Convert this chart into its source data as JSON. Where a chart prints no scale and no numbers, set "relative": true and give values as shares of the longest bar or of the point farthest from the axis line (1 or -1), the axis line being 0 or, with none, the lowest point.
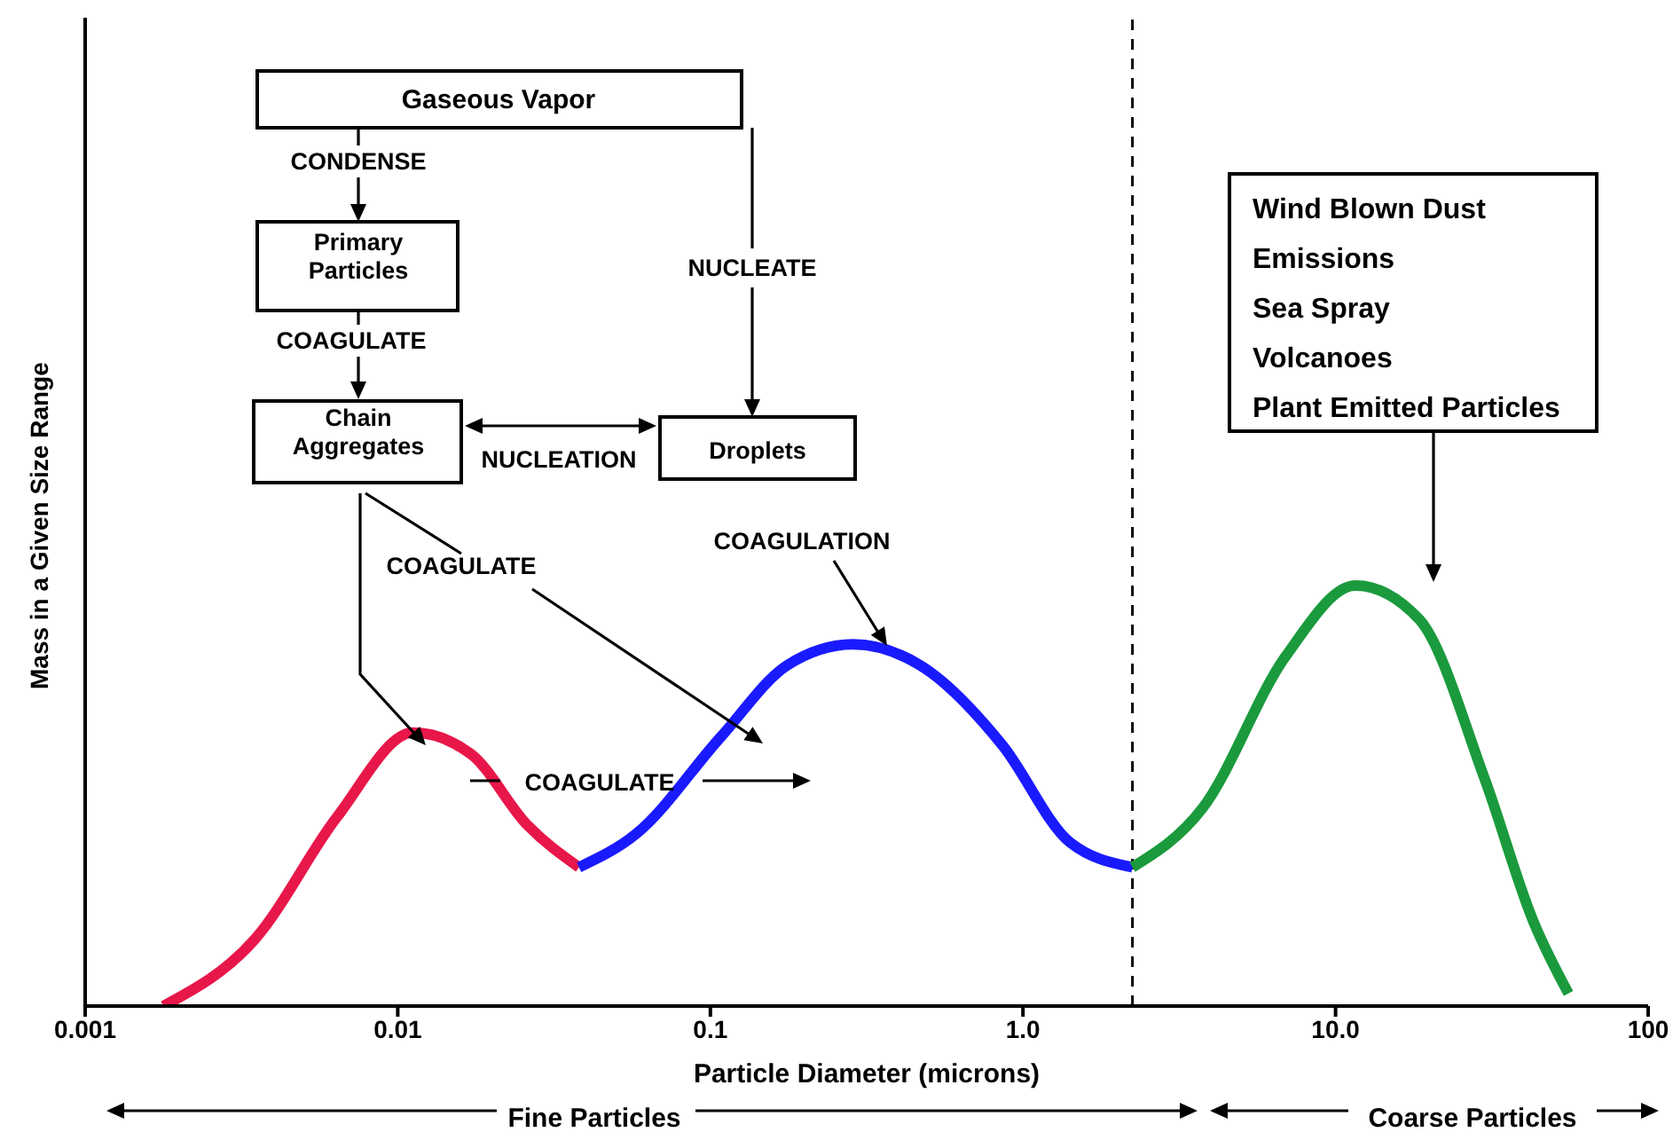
{
  "chart_data": {
    "type": "line",
    "xlabel": "Particle Diameter (microns)",
    "ylabel": "Mass in a Given Size Range",
    "relative": true,
    "log": "x",
    "grid": false,
    "legend": false,
    "marker": "none",
    "line_style": "solid",
    "xlim": [
      0.001,
      100
    ],
    "xticks": [
      0.001,
      0.01,
      0.1,
      {
        "value": 1,
        "label": "1.0"
      },
      {
        "value": 10,
        "label": "10.0"
      },
      100
    ],
    "series": [
      {
        "color": "#e8174a",
        "x": [
          0.00178,
          0.0035,
          0.0064,
          0.0112,
          0.0171,
          0.026,
          0.038
        ],
        "values": [
          0,
          0.16,
          0.45,
          0.65,
          0.6,
          0.43,
          0.33
        ]
      },
      {
        "color": "#1a1aff",
        "x": [
          0.038,
          0.058,
          0.108,
          0.176,
          0.286,
          0.47,
          0.86,
          1.41,
          2.24
        ],
        "values": [
          0.33,
          0.41,
          0.64,
          0.81,
          0.86,
          0.81,
          0.62,
          0.39,
          0.33
        ]
      },
      {
        "color": "#1a9a3c",
        "x": [
          2.24,
          3.75,
          6.9,
          11.6,
          18.5,
          30,
          43,
          55.6
        ],
        "values": [
          0.33,
          0.47,
          0.83,
          1,
          0.92,
          0.54,
          0.2,
          0.03
        ]
      }
    ],
    "ref_lines": [
      {
        "axis": "x",
        "value": 2.24,
        "line_style": "dashed",
        "color": "#000000"
      }
    ],
    "annotations": [
      "Gaseous Vapor",
      "CONDENSE",
      "Primary Particles",
      "COAGULATE",
      "Chain Aggregates",
      "NUCLEATION",
      "Droplets",
      "NUCLEATE",
      "COAGULATION",
      "COAGULATE",
      "COAGULATE",
      "Wind Blown Dust",
      "Emissions",
      "Sea Spray",
      "Volcanoes",
      "Plant Emitted Particles",
      "Fine Particles",
      "Coarse Particles"
    ]
  }
}
